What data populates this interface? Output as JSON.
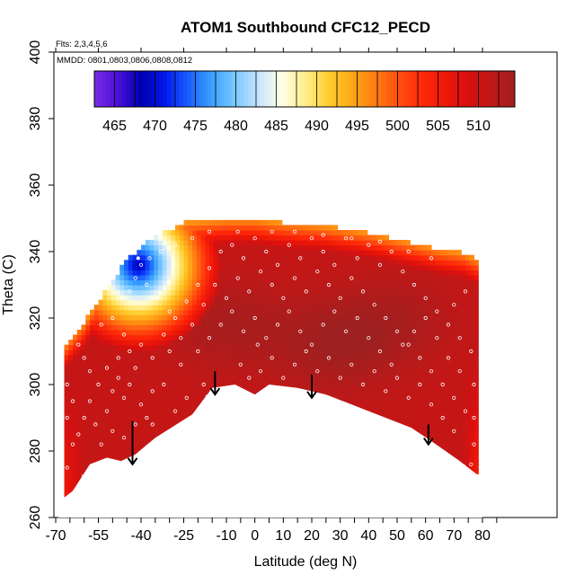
{
  "chart_data": {
    "type": "heatmap",
    "title": "ATOM1 Southbound CFC12_PECD",
    "flights_note": "Flts: 2,3,4,5,6",
    "dates_note": "MMDD: 0801,0803,0806,0808,0812",
    "xlabel": "Latitude (deg N)",
    "ylabel": "Theta (C)",
    "xlim": [
      -70,
      85
    ],
    "ylim": [
      260,
      400
    ],
    "x_ticks": [
      -70,
      -55,
      -40,
      -25,
      -10,
      0,
      10,
      20,
      30,
      40,
      50,
      60,
      70,
      80
    ],
    "x_tick_labels": [
      "-70",
      "-55",
      "-40",
      "-25",
      "-10",
      "0",
      "10",
      "20",
      "30",
      "40",
      "50",
      "60",
      "70",
      "80"
    ],
    "x_minor_ticks": [
      -65,
      -60,
      -50,
      -45,
      -35,
      -30,
      -20,
      -15,
      -5,
      5,
      15,
      25,
      35,
      45,
      55,
      65,
      75,
      85
    ],
    "y_ticks": [
      260,
      280,
      300,
      320,
      340,
      360,
      380,
      400
    ],
    "y_tick_labels": [
      "260",
      "280",
      "300",
      "320",
      "340",
      "360",
      "380",
      "400"
    ],
    "colorbar": {
      "range": [
        462.5,
        514.5
      ],
      "labels": [
        465,
        470,
        475,
        480,
        485,
        490,
        495,
        500,
        505,
        510
      ],
      "colors": [
        "#7b2be2",
        "#4a10d8",
        "#0000b0",
        "#0018e8",
        "#1a5cff",
        "#3aa0ff",
        "#78c8ff",
        "#c4e4ff",
        "#ffffe8",
        "#ffee90",
        "#ffce30",
        "#ffa818",
        "#ff7e10",
        "#ff5010",
        "#ff2a0a",
        "#ee1808",
        "#d81010",
        "#c01818",
        "#9e2020"
      ]
    },
    "field": {
      "background_value": 511,
      "hotspots": [
        {
          "lat": 28,
          "theta": 312,
          "value": 514
        },
        {
          "lat": -10,
          "theta": 318,
          "value": 513.5
        },
        {
          "lat": 50,
          "theta": 320,
          "value": 513
        }
      ],
      "low_feature": {
        "lat": -41,
        "theta": 336,
        "value": 468
      },
      "boundary_top": [
        {
          "lat": -67,
          "theta": 311
        },
        {
          "lat": -60,
          "theta": 318
        },
        {
          "lat": -52,
          "theta": 328
        },
        {
          "lat": -46,
          "theta": 336
        },
        {
          "lat": -41,
          "theta": 340
        },
        {
          "lat": -35,
          "theta": 344
        },
        {
          "lat": -25,
          "theta": 348
        },
        {
          "lat": -10,
          "theta": 349
        },
        {
          "lat": 0,
          "theta": 349
        },
        {
          "lat": 10,
          "theta": 348
        },
        {
          "lat": 25,
          "theta": 347
        },
        {
          "lat": 40,
          "theta": 345
        },
        {
          "lat": 55,
          "theta": 342
        },
        {
          "lat": 65,
          "theta": 340
        },
        {
          "lat": 73,
          "theta": 339
        },
        {
          "lat": 78,
          "theta": 337
        }
      ],
      "boundary_bottom": [
        {
          "lat": -67,
          "theta": 266
        },
        {
          "lat": -64,
          "theta": 268
        },
        {
          "lat": -58,
          "theta": 276
        },
        {
          "lat": -52,
          "theta": 278
        },
        {
          "lat": -47,
          "theta": 277
        },
        {
          "lat": -42,
          "theta": 279
        },
        {
          "lat": -35,
          "theta": 284
        },
        {
          "lat": -22,
          "theta": 291
        },
        {
          "lat": -15,
          "theta": 299
        },
        {
          "lat": -7,
          "theta": 300
        },
        {
          "lat": 0,
          "theta": 297
        },
        {
          "lat": 5,
          "theta": 300
        },
        {
          "lat": 15,
          "theta": 299
        },
        {
          "lat": 25,
          "theta": 297
        },
        {
          "lat": 40,
          "theta": 292
        },
        {
          "lat": 55,
          "theta": 287
        },
        {
          "lat": 62,
          "theta": 283
        },
        {
          "lat": 72,
          "theta": 277
        },
        {
          "lat": 78,
          "theta": 273
        }
      ]
    },
    "arrows": [
      {
        "lat": -43,
        "theta_top": 289,
        "theta_tip": 276
      },
      {
        "lat": -14,
        "theta_top": 304,
        "theta_tip": 297
      },
      {
        "lat": 20,
        "theta_top": 303,
        "theta_tip": 296
      },
      {
        "lat": 61,
        "theta_top": 288,
        "theta_tip": 282
      }
    ],
    "samples": [
      [
        -62,
        312
      ],
      [
        -60,
        308
      ],
      [
        -58,
        304
      ],
      [
        -55,
        300
      ],
      [
        -52,
        305
      ],
      [
        -50,
        298
      ],
      [
        -48,
        302
      ],
      [
        -46,
        296
      ],
      [
        -44,
        300
      ],
      [
        -42,
        305
      ],
      [
        -40,
        294
      ],
      [
        -38,
        290
      ],
      [
        -36,
        298
      ],
      [
        -60,
        290
      ],
      [
        -62,
        285
      ],
      [
        -64,
        295
      ],
      [
        -56,
        288
      ],
      [
        -54,
        282
      ],
      [
        -50,
        286
      ],
      [
        -46,
        284
      ],
      [
        -42,
        288
      ],
      [
        -66,
        300
      ],
      [
        -66,
        290
      ],
      [
        -66,
        275
      ],
      [
        -64,
        282
      ],
      [
        -58,
        295
      ],
      [
        -52,
        292
      ],
      [
        -48,
        308
      ],
      [
        -44,
        310
      ],
      [
        -40,
        312
      ],
      [
        -36,
        308
      ],
      [
        -32,
        315
      ],
      [
        -28,
        320
      ],
      [
        -24,
        325
      ],
      [
        -20,
        330
      ],
      [
        -16,
        335
      ],
      [
        -12,
        340
      ],
      [
        -8,
        342
      ],
      [
        -4,
        338
      ],
      [
        0,
        344
      ],
      [
        4,
        340
      ],
      [
        8,
        336
      ],
      [
        12,
        342
      ],
      [
        16,
        338
      ],
      [
        20,
        344
      ],
      [
        24,
        340
      ],
      [
        28,
        336
      ],
      [
        32,
        344
      ],
      [
        36,
        338
      ],
      [
        40,
        342
      ],
      [
        44,
        336
      ],
      [
        48,
        340
      ],
      [
        52,
        334
      ],
      [
        56,
        330
      ],
      [
        60,
        326
      ],
      [
        64,
        322
      ],
      [
        68,
        318
      ],
      [
        72,
        314
      ],
      [
        76,
        310
      ],
      [
        77,
        300
      ],
      [
        77,
        290
      ],
      [
        77,
        282
      ],
      [
        76,
        276
      ],
      [
        74,
        292
      ],
      [
        70,
        296
      ],
      [
        66,
        300
      ],
      [
        62,
        304
      ],
      [
        58,
        308
      ],
      [
        54,
        312
      ],
      [
        50,
        316
      ],
      [
        46,
        320
      ],
      [
        42,
        324
      ],
      [
        38,
        328
      ],
      [
        34,
        332
      ],
      [
        30,
        326
      ],
      [
        26,
        330
      ],
      [
        22,
        334
      ],
      [
        18,
        328
      ],
      [
        14,
        332
      ],
      [
        10,
        326
      ],
      [
        6,
        330
      ],
      [
        2,
        334
      ],
      [
        -2,
        328
      ],
      [
        -6,
        332
      ],
      [
        -10,
        326
      ],
      [
        -14,
        330
      ],
      [
        -18,
        324
      ],
      [
        -22,
        318
      ],
      [
        -26,
        314
      ],
      [
        -30,
        322
      ],
      [
        -34,
        326
      ],
      [
        -38,
        330
      ],
      [
        -30,
        310
      ],
      [
        -26,
        306
      ],
      [
        -20,
        310
      ],
      [
        -16,
        314
      ],
      [
        -12,
        318
      ],
      [
        -8,
        322
      ],
      [
        -4,
        316
      ],
      [
        0,
        320
      ],
      [
        4,
        314
      ],
      [
        8,
        318
      ],
      [
        12,
        322
      ],
      [
        16,
        316
      ],
      [
        20,
        312
      ],
      [
        24,
        318
      ],
      [
        28,
        322
      ],
      [
        32,
        316
      ],
      [
        36,
        320
      ],
      [
        40,
        314
      ],
      [
        44,
        310
      ],
      [
        48,
        306
      ],
      [
        52,
        312
      ],
      [
        56,
        316
      ],
      [
        60,
        320
      ],
      [
        64,
        314
      ],
      [
        68,
        308
      ],
      [
        72,
        304
      ],
      [
        70,
        324
      ],
      [
        74,
        328
      ],
      [
        -5,
        306
      ],
      [
        -2,
        302
      ],
      [
        2,
        304
      ],
      [
        6,
        308
      ],
      [
        10,
        302
      ],
      [
        14,
        306
      ],
      [
        18,
        310
      ],
      [
        22,
        304
      ],
      [
        26,
        308
      ],
      [
        30,
        302
      ],
      [
        34,
        306
      ],
      [
        38,
        300
      ],
      [
        42,
        304
      ],
      [
        46,
        298
      ],
      [
        50,
        302
      ],
      [
        54,
        296
      ],
      [
        58,
        300
      ],
      [
        62,
        294
      ],
      [
        66,
        290
      ],
      [
        70,
        286
      ],
      [
        -18,
        300
      ],
      [
        -24,
        296
      ],
      [
        -28,
        292
      ],
      [
        -32,
        300
      ],
      [
        -36,
        288
      ],
      [
        -46,
        315
      ],
      [
        -50,
        320
      ],
      [
        -54,
        318
      ],
      [
        -58,
        322
      ],
      [
        -62,
        325
      ],
      [
        -44,
        328
      ],
      [
        -42,
        332
      ],
      [
        -40,
        336
      ],
      [
        -37,
        338
      ],
      [
        -33,
        340
      ],
      [
        -28,
        342
      ],
      [
        -22,
        344
      ],
      [
        -16,
        346
      ],
      [
        -6,
        346
      ],
      [
        6,
        346
      ],
      [
        14,
        346
      ],
      [
        24,
        345
      ],
      [
        34,
        344
      ],
      [
        44,
        343
      ],
      [
        54,
        340
      ],
      [
        62,
        338
      ],
      [
        -3,
        350
      ],
      [
        1,
        312
      ],
      [
        -1,
        296
      ],
      [
        3,
        298
      ]
    ]
  }
}
